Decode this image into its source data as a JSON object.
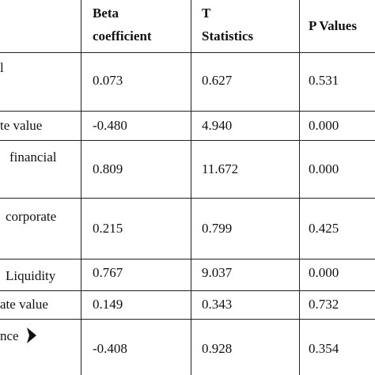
{
  "header": {
    "beta_line1": "Beta",
    "beta_line2": "coefficient",
    "t_line1": "T",
    "t_line2": "Statistics",
    "p": "P Values"
  },
  "rows": [
    {
      "label": [
        "l"
      ],
      "beta": "0.073",
      "t": "0.627",
      "p": "0.531"
    },
    {
      "label": [
        "te value"
      ],
      "beta": "-0.480",
      "t": "4.940",
      "p": "0.000"
    },
    {
      "label": [
        "financial"
      ],
      "beta": "0.809",
      "t": "11.672",
      "p": "0.000"
    },
    {
      "label": [
        "corporate"
      ],
      "beta": "0.215",
      "t": "0.799",
      "p": "0.425"
    },
    {
      "label": [
        "Liquidity"
      ],
      "beta": "0.767",
      "t": "9.037",
      "p": "0.000"
    },
    {
      "label": [
        "ate value"
      ],
      "beta": "0.149",
      "t": "0.343",
      "p": "0.732"
    },
    {
      "label": [
        "nce"
      ],
      "beta": "-0.408",
      "t": "0.928",
      "p": "0.354"
    }
  ]
}
